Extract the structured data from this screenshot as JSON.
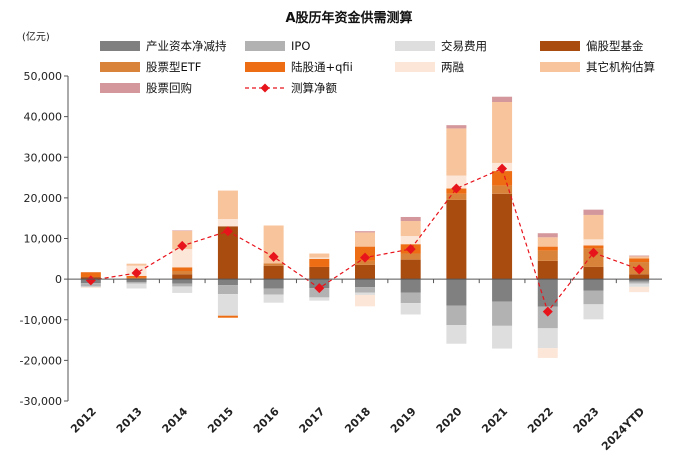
{
  "chart_data": {
    "type": "bar",
    "subtype": "stacked",
    "title": "A股历年资金供需测算",
    "unit_label": "(亿元)",
    "xlabel": "",
    "ylabel": "",
    "ylim": [
      -30000,
      50000
    ],
    "yticks": [
      -30000,
      -20000,
      -10000,
      0,
      10000,
      20000,
      30000,
      40000,
      50000
    ],
    "ytick_labels": [
      "-30,000",
      "-20,000",
      "-10,000",
      "0",
      "10,000",
      "20,000",
      "30,000",
      "40,000",
      "50,000"
    ],
    "categories": [
      "2012",
      "2013",
      "2014",
      "2015",
      "2016",
      "2017",
      "2018",
      "2019",
      "2020",
      "2021",
      "2022",
      "2023",
      "2024YTD"
    ],
    "legend_position": "top",
    "series": [
      {
        "name": "产业资本净减持",
        "color": "#808080",
        "values": [
          -1000,
          -700,
          -1100,
          -1500,
          -2300,
          -2200,
          -2000,
          -3300,
          -6500,
          -5500,
          -6800,
          -2800,
          -600
        ]
      },
      {
        "name": "IPO",
        "color": "#b2b2b2",
        "values": [
          -800,
          -400,
          -700,
          -2200,
          -1500,
          -2300,
          -1300,
          -2600,
          -4800,
          -6000,
          -5300,
          -3400,
          -500
        ]
      },
      {
        "name": "交易费用",
        "color": "#dedede",
        "values": [
          -200,
          -1200,
          -1600,
          -5300,
          -2000,
          -800,
          -600,
          -2800,
          -4600,
          -5600,
          -4900,
          -3700,
          -800
        ]
      },
      {
        "name": "偏股型基金",
        "color": "#a84c10",
        "values": [
          500,
          0,
          1200,
          13000,
          3300,
          3000,
          3500,
          4800,
          19500,
          21000,
          4500,
          3000,
          1200
        ]
      },
      {
        "name": "股票型ETF",
        "color": "#d8823a",
        "values": [
          0,
          300,
          800,
          0,
          600,
          0,
          1000,
          1500,
          1500,
          2000,
          2500,
          4500,
          3000
        ]
      },
      {
        "name": "陆股通+qfii",
        "color": "#ec6d14",
        "values": [
          1200,
          500,
          900,
          -500,
          0,
          2000,
          3500,
          2300,
          1300,
          3600,
          1000,
          800,
          900
        ]
      },
      {
        "name": "两融",
        "color": "#fbe6d8",
        "values": [
          -200,
          2500,
          4500,
          1800,
          0,
          300,
          -2800,
          2000,
          3200,
          2000,
          -2400,
          1500,
          -1300
        ]
      },
      {
        "name": "其它机构估算",
        "color": "#f8c49c",
        "values": [
          0,
          500,
          4500,
          7000,
          9300,
          1000,
          3500,
          3700,
          11600,
          15000,
          2300,
          6000,
          500
        ]
      },
      {
        "name": "股票回购",
        "color": "#d4979b",
        "values": [
          0,
          0,
          100,
          0,
          0,
          0,
          300,
          1000,
          800,
          1300,
          1000,
          1300,
          200
        ]
      },
      {
        "name": "测算净额",
        "color": "#e8141c",
        "type": "line",
        "values": [
          -300,
          1500,
          8200,
          11800,
          5500,
          -2200,
          5300,
          7400,
          22300,
          27200,
          -8000,
          6500,
          2400
        ]
      }
    ]
  }
}
